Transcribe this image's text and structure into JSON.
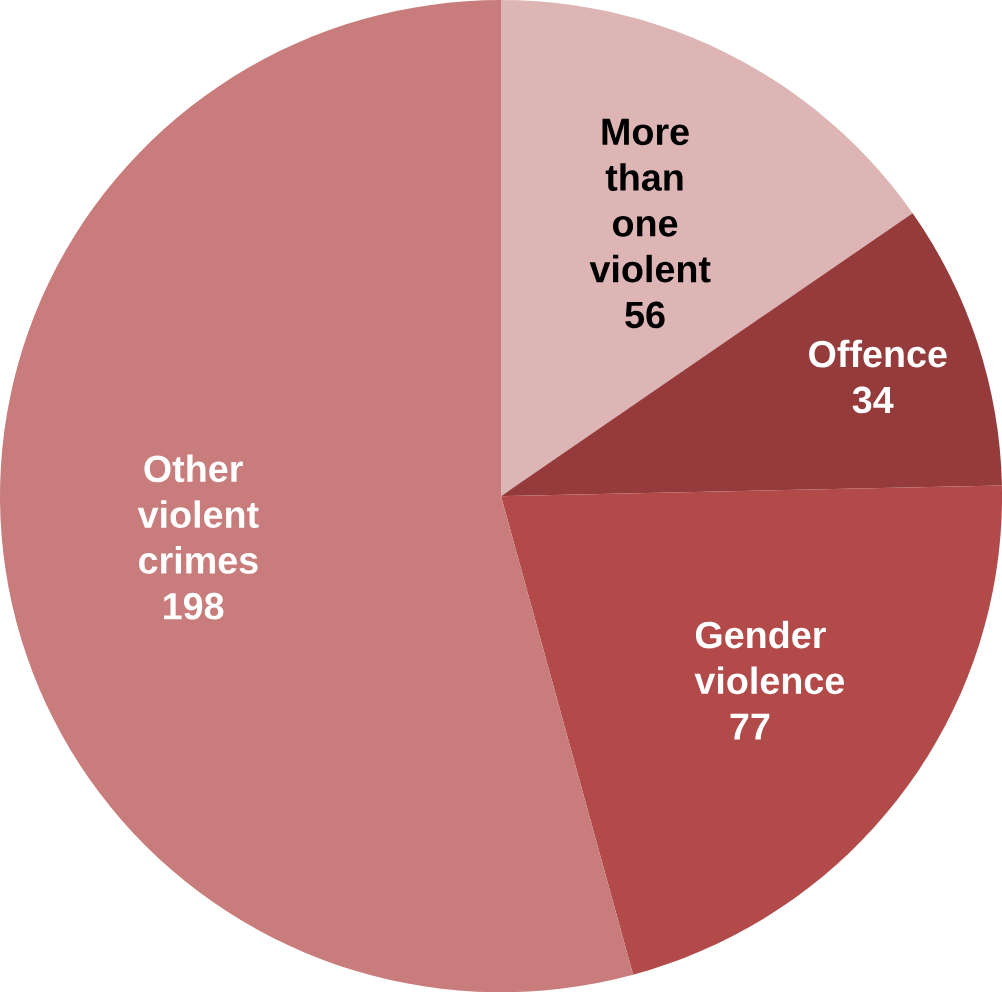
{
  "chart_data": {
    "type": "pie",
    "categories": [
      "More than one violent",
      "Offence",
      "Gender violence",
      "Other violent crimes"
    ],
    "values": [
      56,
      34,
      77,
      198
    ],
    "colors": [
      "#deb5b5",
      "#953b3b",
      "#b34a4a",
      "#c87c7c"
    ],
    "data_labels": true
  }
}
